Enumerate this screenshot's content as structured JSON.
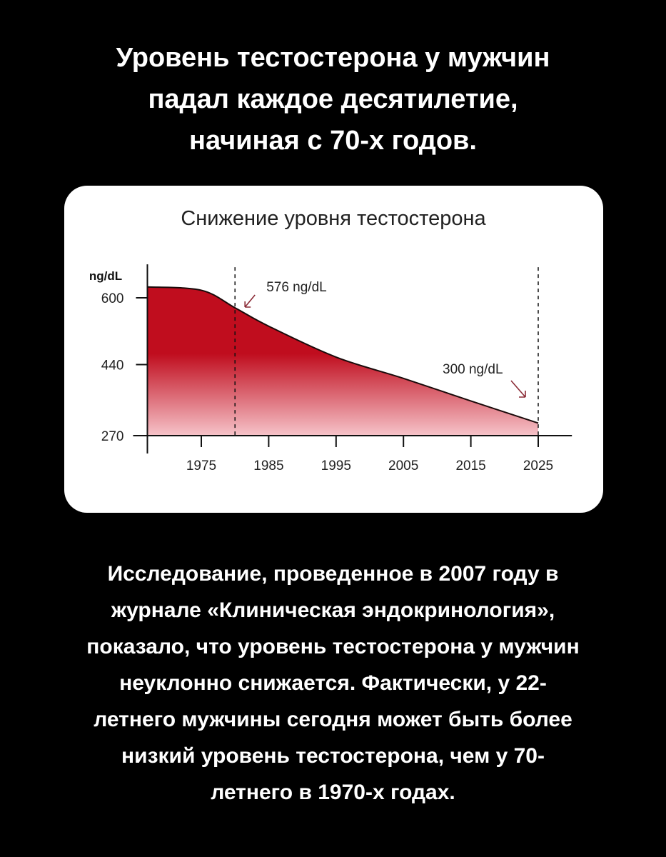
{
  "headline": [
    "Уровень тестостерона у мужчин",
    "падал каждое десятилетие,",
    "начиная с 70-х годов."
  ],
  "body_text": [
    "Исследование, проведенное в 2007 году в",
    "журнале «Клиническая эндокринология»,",
    "показало, что уровень тестостерона у мужчин",
    "неуклонно снижается. Фактически, у 22-",
    "летнего мужчины сегодня может быть более",
    "низкий уровень тестостерона, чем у 70-",
    "летнего в 1970-х годах."
  ],
  "chart_data": {
    "type": "area",
    "title": "Снижение уровня тестостерона",
    "ylabel": "ng/dL",
    "xlabel": "",
    "x": [
      1967,
      1975,
      1980,
      1985,
      1995,
      2005,
      2015,
      2025
    ],
    "values": [
      626,
      618,
      576,
      532,
      458,
      407,
      353,
      300
    ],
    "xticks": [
      1975,
      1985,
      1995,
      2005,
      2015,
      2025
    ],
    "yticks": [
      270,
      440,
      600
    ],
    "xlim": [
      1967,
      2030
    ],
    "ylim": [
      270,
      680
    ],
    "grid": false,
    "fill_color_top": "#c00d1e",
    "fill_color_bottom": "#f6c3c9",
    "line_color": "#1a0a0a",
    "reference_lines": [
      1980,
      2025
    ],
    "annotations": [
      {
        "text": "576 ng/dL",
        "x": 1980,
        "y": 576
      },
      {
        "text": "300 ng/dL",
        "x": 2025,
        "y": 300
      }
    ],
    "annotation_arrow_color": "#8a2a35"
  }
}
